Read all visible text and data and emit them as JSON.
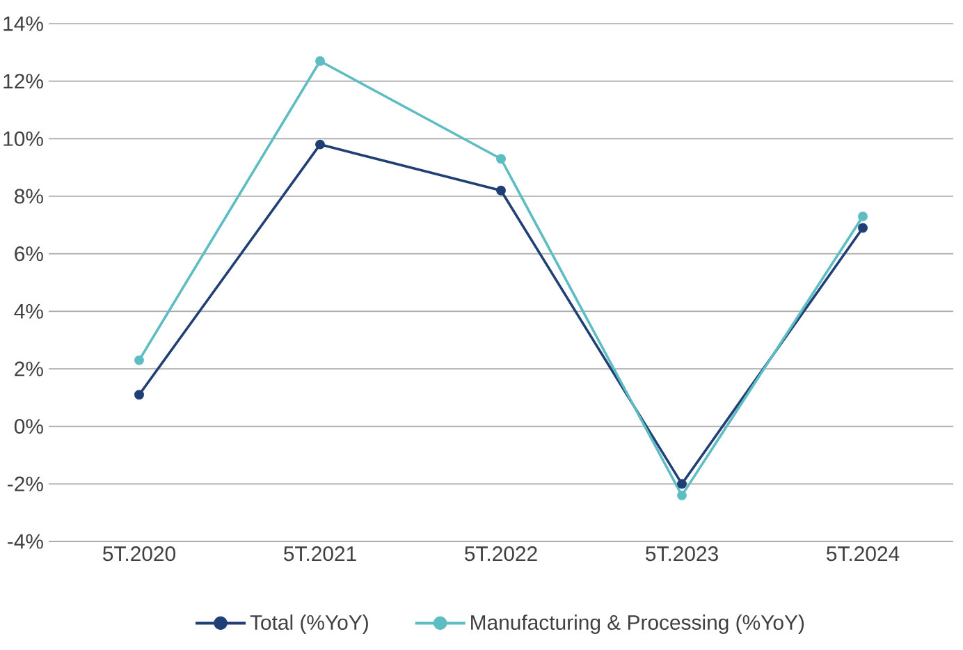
{
  "chart_data": {
    "type": "line",
    "categories": [
      "5T.2020",
      "5T.2021",
      "5T.2022",
      "5T.2023",
      "5T.2024"
    ],
    "series": [
      {
        "name": "Total (%YoY)",
        "color": "#1f3f75",
        "values": [
          1.1,
          9.8,
          8.2,
          -2.0,
          6.9
        ]
      },
      {
        "name": "Manufacturing & Processing (%YoY)",
        "color": "#5dbdc3",
        "values": [
          2.3,
          12.7,
          9.3,
          -2.4,
          7.3
        ]
      }
    ],
    "ylim": [
      -4,
      14
    ],
    "yticks": [
      {
        "value": -4,
        "label": "-4%"
      },
      {
        "value": -2,
        "label": "-2%"
      },
      {
        "value": 0,
        "label": "0%"
      },
      {
        "value": 2,
        "label": "2%"
      },
      {
        "value": 4,
        "label": "4%"
      },
      {
        "value": 6,
        "label": "6%"
      },
      {
        "value": 8,
        "label": "8%"
      },
      {
        "value": 10,
        "label": "10%"
      },
      {
        "value": 12,
        "label": "12%"
      },
      {
        "value": 14,
        "label": "14%"
      }
    ],
    "grid": "y",
    "legend": "bottom",
    "marker": "circle",
    "line_style": "solid"
  }
}
